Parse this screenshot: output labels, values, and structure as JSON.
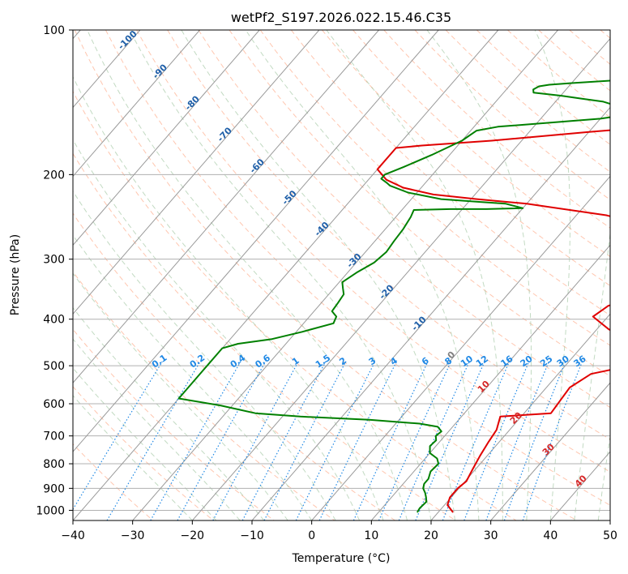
{
  "chart_data": {
    "type": "line",
    "title": "wetPf2_S197.2026.022.15.46.C35",
    "xlabel": "Temperature (°C)",
    "ylabel": "Pressure (hPa)",
    "xlim": [
      -40,
      50
    ],
    "ylim": [
      1050,
      100
    ],
    "y_scale": "log",
    "grid": true,
    "xticks": [
      -40,
      -30,
      -20,
      -10,
      0,
      10,
      20,
      30,
      40,
      50
    ],
    "yticks": [
      100,
      200,
      300,
      400,
      500,
      600,
      700,
      800,
      900,
      1000
    ],
    "isotherm_labels": [
      -100,
      -90,
      -80,
      -70,
      -60,
      -50,
      -40,
      -30,
      -20,
      -10,
      0,
      10,
      20,
      30,
      40
    ],
    "mixing_ratio_labels": [
      "0.1",
      "0.2",
      "0.4",
      "0.6",
      "1",
      "1.5",
      "2",
      "3",
      "4",
      "6",
      "8",
      "10",
      "12",
      "16",
      "20",
      "25",
      "30",
      "36"
    ],
    "colors": {
      "temperature": "#e00000",
      "dewpoint": "#008000",
      "isotherm_cold": "#1f5fa8",
      "isotherm_warm": "#d62728",
      "isotherm_zero": "#808080",
      "mixing_ratio": "#1e88e5",
      "dry_adiabat": "#ffa07a",
      "moist_adiabat": "#8fbc8f"
    },
    "series": [
      {
        "key": "temperature",
        "points": [
          [
            22.5,
            1010
          ],
          [
            20.5,
            975
          ],
          [
            19.8,
            940
          ],
          [
            19.8,
            900
          ],
          [
            20.2,
            870
          ],
          [
            19.5,
            820
          ],
          [
            18.8,
            770
          ],
          [
            18.2,
            720
          ],
          [
            17.8,
            680
          ],
          [
            16.5,
            638
          ],
          [
            24.5,
            628
          ],
          [
            24.2,
            590
          ],
          [
            23.9,
            555
          ],
          [
            25.5,
            520
          ],
          [
            29.5,
            505
          ],
          [
            32.0,
            495
          ],
          [
            35.0,
            486
          ],
          [
            36.3,
            478
          ],
          [
            34.0,
            465
          ],
          [
            28.0,
            445
          ],
          [
            22.0,
            420
          ],
          [
            17.5,
            395
          ],
          [
            18.5,
            375
          ],
          [
            23.0,
            358
          ],
          [
            30.0,
            345
          ],
          [
            36.5,
            330
          ],
          [
            34.0,
            308
          ],
          [
            26.0,
            283
          ],
          [
            15.0,
            258
          ],
          [
            5.0,
            243
          ],
          [
            -10.0,
            230
          ],
          [
            -19.0,
            225
          ],
          [
            -27.0,
            220
          ],
          [
            -33.0,
            213
          ],
          [
            -37.0,
            205
          ],
          [
            -40.0,
            195
          ],
          [
            -40.0,
            176
          ],
          [
            -36.0,
            174
          ],
          [
            -25.0,
            170
          ],
          [
            -10.0,
            163
          ],
          [
            5.0,
            157
          ],
          [
            10.0,
            153
          ],
          [
            12.5,
            148
          ],
          [
            13.8,
            141
          ],
          [
            14.0,
            135
          ],
          [
            13.5,
            130
          ],
          [
            12.5,
            124
          ],
          [
            11.8,
            118
          ],
          [
            11.5,
            112
          ],
          [
            11.5,
            106
          ],
          [
            11.8,
            100
          ]
        ]
      },
      {
        "key": "dewpoint",
        "points": [
          [
            16.5,
            1010
          ],
          [
            16.3,
            990
          ],
          [
            16.5,
            960
          ],
          [
            15.8,
            940
          ],
          [
            15.0,
            920
          ],
          [
            14.0,
            900
          ],
          [
            13.5,
            880
          ],
          [
            13.5,
            860
          ],
          [
            12.8,
            830
          ],
          [
            13.0,
            800
          ],
          [
            12.0,
            780
          ],
          [
            10.0,
            760
          ],
          [
            9.0,
            735
          ],
          [
            9.2,
            715
          ],
          [
            8.5,
            700
          ],
          [
            8.8,
            685
          ],
          [
            7.5,
            670
          ],
          [
            4.0,
            660
          ],
          [
            -5.0,
            648
          ],
          [
            -17.0,
            638
          ],
          [
            -25.0,
            628
          ],
          [
            -32.0,
            605
          ],
          [
            -40.0,
            585
          ],
          [
            -40.0,
            460
          ],
          [
            -38.0,
            450
          ],
          [
            -33.0,
            440
          ],
          [
            -29.0,
            425
          ],
          [
            -25.0,
            408
          ],
          [
            -25.5,
            395
          ],
          [
            -27.0,
            385
          ],
          [
            -27.2,
            370
          ],
          [
            -27.5,
            355
          ],
          [
            -28.5,
            345
          ],
          [
            -29.5,
            335
          ],
          [
            -28.5,
            320
          ],
          [
            -27.0,
            305
          ],
          [
            -26.5,
            290
          ],
          [
            -26.8,
            275
          ],
          [
            -27.0,
            260
          ],
          [
            -27.5,
            245
          ],
          [
            -28.0,
            237
          ],
          [
            -22.0,
            236
          ],
          [
            -16.0,
            236
          ],
          [
            -10.0,
            235
          ],
          [
            -13.5,
            230
          ],
          [
            -18.0,
            228
          ],
          [
            -25.0,
            225
          ],
          [
            -31.5,
            218
          ],
          [
            -35.5,
            211
          ],
          [
            -36.5,
            208
          ],
          [
            -38.0,
            204
          ],
          [
            -38.0,
            200
          ],
          [
            -36.0,
            193
          ],
          [
            -33.0,
            182
          ],
          [
            -30.0,
            170
          ],
          [
            -29.0,
            162
          ],
          [
            -26.0,
            159
          ],
          [
            -18.0,
            156
          ],
          [
            -10.0,
            153
          ],
          [
            -6.0,
            150
          ],
          [
            -5.8,
            148
          ],
          [
            -6.5,
            146
          ],
          [
            -9.0,
            144
          ],
          [
            -12.0,
            141
          ],
          [
            -16.0,
            139
          ],
          [
            -20.0,
            137
          ],
          [
            -25.0,
            135
          ],
          [
            -25.5,
            133
          ],
          [
            -25.0,
            131
          ],
          [
            -23.5,
            130
          ],
          [
            -20.0,
            129
          ],
          [
            -12.0,
            127
          ],
          [
            -6.0,
            123
          ],
          [
            -4.5,
            119
          ],
          [
            -3.5,
            115
          ],
          [
            -3.0,
            110
          ],
          [
            -2.5,
            105
          ],
          [
            -2.0,
            100
          ]
        ]
      }
    ]
  }
}
